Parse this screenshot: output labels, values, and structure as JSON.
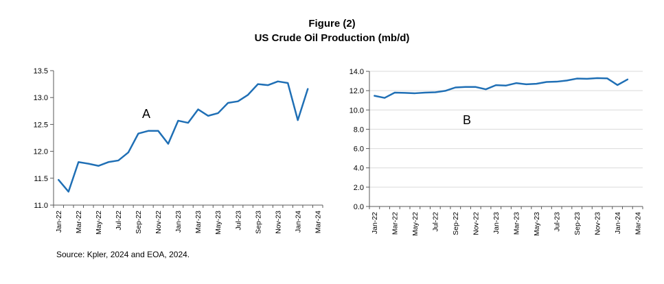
{
  "figure": {
    "label": "Figure (2)",
    "title": "US Crude Oil Production (mb/d)"
  },
  "source": "Source: Kpler, 2024 and EOA, 2024.",
  "colors": {
    "line": "#1f6fb5",
    "axis": "#595959",
    "grid": "#d9d9d9"
  },
  "chart_data": [
    {
      "type": "line",
      "annotation": "A",
      "x_tick_labels": [
        "Jan-22",
        "Mar-22",
        "May-22",
        "Jul-22",
        "Sep-22",
        "Nov-22",
        "Jan-23",
        "Mar-23",
        "May-23",
        "Jul-23",
        "Sep-23",
        "Nov-23",
        "Jan-24",
        "Mar-24"
      ],
      "ylim": [
        11.0,
        13.5
      ],
      "y_tick_labels": [
        "11.0",
        "11.5",
        "12.0",
        "12.5",
        "13.0",
        "13.5"
      ],
      "y_ticks": [
        11.0,
        11.5,
        12.0,
        12.5,
        13.0,
        13.5
      ],
      "grid": false,
      "x": [
        "Jan-22",
        "Feb-22",
        "Mar-22",
        "Apr-22",
        "May-22",
        "Jun-22",
        "Jul-22",
        "Aug-22",
        "Sep-22",
        "Oct-22",
        "Nov-22",
        "Dec-22",
        "Jan-23",
        "Feb-23",
        "Mar-23",
        "Apr-23",
        "May-23",
        "Jun-23",
        "Jul-23",
        "Aug-23",
        "Sep-23",
        "Oct-23",
        "Nov-23",
        "Dec-23",
        "Jan-24",
        "Feb-24"
      ],
      "series": [
        {
          "values": [
            11.47,
            11.25,
            11.8,
            11.77,
            11.73,
            11.8,
            11.83,
            11.98,
            12.33,
            12.38,
            12.38,
            12.14,
            12.57,
            12.53,
            12.78,
            12.66,
            12.71,
            12.9,
            12.93,
            13.05,
            13.25,
            13.23,
            13.3,
            13.27,
            12.58,
            13.16
          ]
        }
      ]
    },
    {
      "type": "line",
      "annotation": "B",
      "x_tick_labels": [
        "Jan-22",
        "Mar-22",
        "May-22",
        "Jul-22",
        "Sep-22",
        "Nov-22",
        "Jan-23",
        "Mar-23",
        "May-23",
        "Jul-23",
        "Sep-23",
        "Nov-23",
        "Jan-24",
        "Mar-24"
      ],
      "ylim": [
        0.0,
        14.0
      ],
      "y_tick_labels": [
        "0.0",
        "2.0",
        "4.0",
        "6.0",
        "8.0",
        "10.0",
        "12.0",
        "14.0"
      ],
      "y_ticks": [
        0,
        2,
        4,
        6,
        8,
        10,
        12,
        14
      ],
      "grid": true,
      "x": [
        "Jan-22",
        "Feb-22",
        "Mar-22",
        "Apr-22",
        "May-22",
        "Jun-22",
        "Jul-22",
        "Aug-22",
        "Sep-22",
        "Oct-22",
        "Nov-22",
        "Dec-22",
        "Jan-23",
        "Feb-23",
        "Mar-23",
        "Apr-23",
        "May-23",
        "Jun-23",
        "Jul-23",
        "Aug-23",
        "Sep-23",
        "Oct-23",
        "Nov-23",
        "Dec-23",
        "Jan-24",
        "Feb-24"
      ],
      "series": [
        {
          "values": [
            11.47,
            11.25,
            11.8,
            11.77,
            11.73,
            11.8,
            11.83,
            11.98,
            12.33,
            12.38,
            12.38,
            12.14,
            12.57,
            12.53,
            12.78,
            12.66,
            12.71,
            12.9,
            12.93,
            13.05,
            13.25,
            13.23,
            13.3,
            13.27,
            12.58,
            13.16
          ]
        }
      ]
    }
  ]
}
